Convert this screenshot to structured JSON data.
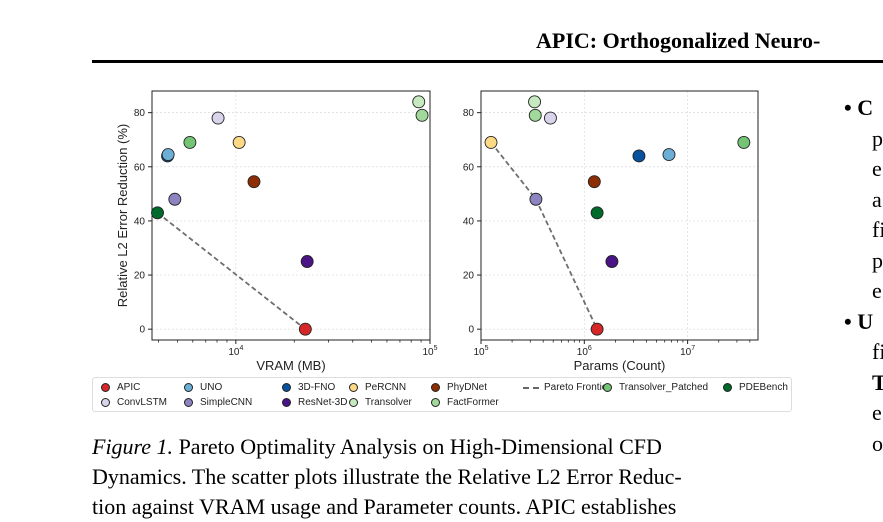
{
  "header": {
    "running_title": "APIC: Orthogonalized Neuro-"
  },
  "chart_data": [
    {
      "type": "scatter",
      "xlabel": "VRAM (MB)",
      "ylabel": "Relative L2 Error Reduction (%)",
      "xscale": "log",
      "xlim": [
        3700,
        100000
      ],
      "ylim": [
        -4,
        88
      ],
      "x_ticks": [
        {
          "value": 10000,
          "label": "10^4"
        },
        {
          "value": 100000,
          "label": "10^5"
        }
      ],
      "y_ticks": [
        0,
        20,
        40,
        60,
        80
      ],
      "grid": true,
      "points": [
        {
          "name": "APIC",
          "x": 22800,
          "y": 0
        },
        {
          "name": "ResNet-3D",
          "x": 23300,
          "y": 25
        },
        {
          "name": "PDEBench",
          "x": 3950,
          "y": 43
        },
        {
          "name": "SimpleCNN",
          "x": 4850,
          "y": 48
        },
        {
          "name": "PhyDNet",
          "x": 12400,
          "y": 54.5
        },
        {
          "name": "3D-FNO",
          "x": 4450,
          "y": 64
        },
        {
          "name": "UNO",
          "x": 4480,
          "y": 64.5
        },
        {
          "name": "Transolver_Patched",
          "x": 5800,
          "y": 69
        },
        {
          "name": "PeRCNN",
          "x": 10400,
          "y": 69
        },
        {
          "name": "ConvLSTM",
          "x": 8100,
          "y": 78
        },
        {
          "name": "Transolver",
          "x": 87500,
          "y": 84
        },
        {
          "name": "FactFormer",
          "x": 91000,
          "y": 79
        }
      ],
      "pareto_frontier": [
        {
          "x": 3950,
          "y": 43
        },
        {
          "x": 22800,
          "y": 0
        }
      ]
    },
    {
      "type": "scatter",
      "xlabel": "Params (Count)",
      "ylabel": "",
      "xscale": "log",
      "xlim": [
        100000,
        48000000
      ],
      "ylim": [
        -4,
        88
      ],
      "x_ticks": [
        {
          "value": 100000,
          "label": "10^5"
        },
        {
          "value": 1000000,
          "label": "10^6"
        },
        {
          "value": 10000000,
          "label": "10^7"
        }
      ],
      "y_ticks": [
        0,
        20,
        40,
        60,
        80
      ],
      "grid": true,
      "points": [
        {
          "name": "APIC",
          "x": 1330000,
          "y": 0
        },
        {
          "name": "ResNet-3D",
          "x": 1850000,
          "y": 25
        },
        {
          "name": "PDEBench",
          "x": 1330000,
          "y": 43
        },
        {
          "name": "SimpleCNN",
          "x": 340000,
          "y": 48
        },
        {
          "name": "PhyDNet",
          "x": 1250000,
          "y": 54.5
        },
        {
          "name": "3D-FNO",
          "x": 3380000,
          "y": 64
        },
        {
          "name": "UNO",
          "x": 6600000,
          "y": 64.5
        },
        {
          "name": "Transolver_Patched",
          "x": 35000000,
          "y": 69
        },
        {
          "name": "PeRCNN",
          "x": 125000,
          "y": 69
        },
        {
          "name": "ConvLSTM",
          "x": 470000,
          "y": 78
        },
        {
          "name": "Transolver",
          "x": 330000,
          "y": 84
        },
        {
          "name": "FactFormer",
          "x": 335000,
          "y": 79
        }
      ],
      "pareto_frontier": [
        {
          "x": 125000,
          "y": 69
        },
        {
          "x": 340000,
          "y": 48
        },
        {
          "x": 1330000,
          "y": 0
        }
      ]
    }
  ],
  "legend": {
    "items": [
      {
        "name": "APIC",
        "color": "#d62728",
        "kind": "marker"
      },
      {
        "name": "UNO",
        "color": "#6baed6",
        "kind": "marker"
      },
      {
        "name": "3D-FNO",
        "color": "#08519c",
        "kind": "marker"
      },
      {
        "name": "PeRCNN",
        "color": "#fdd985",
        "kind": "marker"
      },
      {
        "name": "PhyDNet",
        "color": "#8c2d04",
        "kind": "marker"
      },
      {
        "name": "Pareto Frontier",
        "color": "#666666",
        "kind": "dashed-line"
      },
      {
        "name": "Transolver_Patched",
        "color": "#74c476",
        "kind": "marker"
      },
      {
        "name": "PDEBench",
        "color": "#00692c",
        "kind": "marker"
      },
      {
        "name": "ConvLSTM",
        "color": "#d9d4ec",
        "kind": "marker"
      },
      {
        "name": "SimpleCNN",
        "color": "#8c84c0",
        "kind": "marker"
      },
      {
        "name": "ResNet-3D",
        "color": "#4a1486",
        "kind": "marker"
      },
      {
        "name": "Transolver",
        "color": "#c7e9c0",
        "kind": "marker"
      },
      {
        "name": "FactFormer",
        "color": "#a1d99b",
        "kind": "marker"
      }
    ]
  },
  "caption": {
    "label": "Figure 1.",
    "line1_rest": "Pareto Optimality Analysis on High-Dimensional CFD",
    "line2": "Dynamics. The scatter plots illustrate the Relative L2 Error Reduc-",
    "line3": "tion against VRAM usage and Parameter counts. APIC establishes"
  },
  "side_column": {
    "lines": [
      "• C",
      "p",
      "e",
      "a",
      "fi",
      "p",
      "e",
      "• U",
      "fi",
      "T",
      "e",
      "o"
    ]
  }
}
